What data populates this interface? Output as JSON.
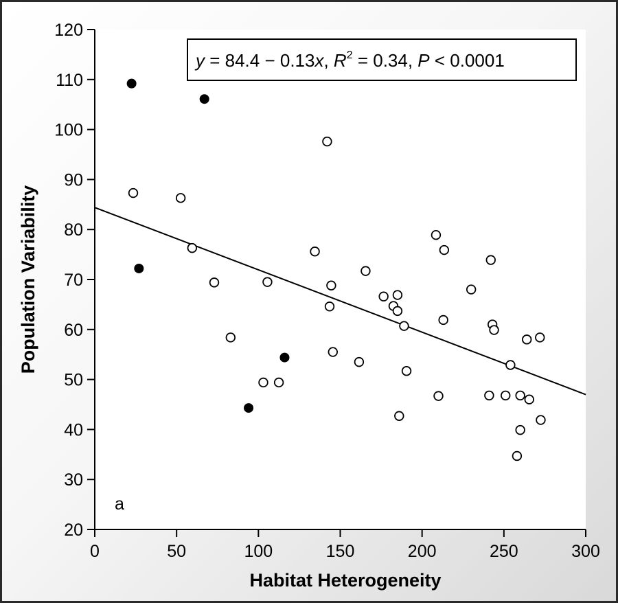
{
  "chart_data": {
    "type": "scatter",
    "xlabel": "Habitat Heterogeneity",
    "ylabel": "Population Variability",
    "panel_label": "a",
    "equation": {
      "y": "y",
      "eq1": " = 84.4 − 0.13",
      "x": "x",
      "eq2": ", ",
      "R": "R",
      "sup": "2",
      "eq3": " = 0.34, ",
      "P": "P",
      "eq4": " < 0.0001"
    },
    "xlim": [
      0,
      300
    ],
    "ylim": [
      20,
      120
    ],
    "xticks": [
      0,
      50,
      100,
      150,
      200,
      250,
      300
    ],
    "yticks": [
      20,
      30,
      40,
      50,
      60,
      70,
      80,
      90,
      100,
      110,
      120
    ],
    "grid": false,
    "regression": {
      "intercept": 84.4,
      "slope": -0.1247
    },
    "colors": {
      "axis": "#000000",
      "open_fill": "#ffffff",
      "filled": "#000000"
    },
    "series": [
      {
        "marker": "filled",
        "points": [
          [
            22.5,
            109.2
          ],
          [
            67,
            106.1
          ],
          [
            27,
            72.2
          ],
          [
            116,
            54.4
          ],
          [
            94,
            44.3
          ]
        ]
      },
      {
        "marker": "open",
        "points": [
          [
            23.5,
            87.3
          ],
          [
            52.5,
            86.3
          ],
          [
            59.5,
            76.3
          ],
          [
            73,
            69.4
          ],
          [
            83,
            58.4
          ],
          [
            103,
            49.4
          ],
          [
            105.5,
            69.5
          ],
          [
            112.5,
            49.4
          ],
          [
            134.5,
            75.6
          ],
          [
            142,
            97.6
          ],
          [
            143.5,
            64.6
          ],
          [
            144.5,
            68.8
          ],
          [
            145.5,
            55.5
          ],
          [
            161.5,
            53.5
          ],
          [
            165.5,
            71.7
          ],
          [
            176.5,
            66.6
          ],
          [
            182.5,
            64.7
          ],
          [
            185,
            63.7
          ],
          [
            185,
            66.9
          ],
          [
            186,
            42.7
          ],
          [
            189,
            60.7
          ],
          [
            190.5,
            51.7
          ],
          [
            208.5,
            78.9
          ],
          [
            210,
            46.7
          ],
          [
            213,
            61.9
          ],
          [
            213.5,
            75.9
          ],
          [
            230,
            68.0
          ],
          [
            241,
            46.8
          ],
          [
            242,
            73.9
          ],
          [
            243,
            61.0
          ],
          [
            244,
            59.9
          ],
          [
            251,
            46.8
          ],
          [
            254,
            52.9
          ],
          [
            258,
            34.7
          ],
          [
            260,
            39.9
          ],
          [
            260,
            46.8
          ],
          [
            264,
            58.0
          ],
          [
            265.5,
            46.0
          ],
          [
            272,
            58.4
          ],
          [
            272.5,
            41.9
          ]
        ]
      }
    ]
  }
}
